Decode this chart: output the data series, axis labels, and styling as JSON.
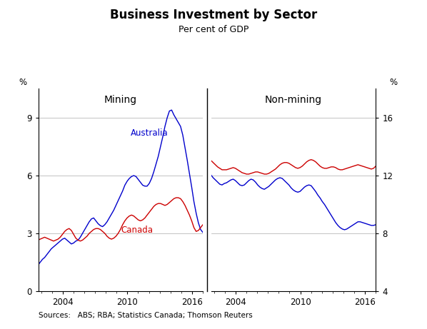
{
  "title": "Business Investment by Sector",
  "subtitle": "Per cent of GDP",
  "panel_left_label": "Mining",
  "panel_right_label": "Non-mining",
  "label_australia": "Australia",
  "label_canada": "Canada",
  "left_ylabel": "%",
  "right_ylabel": "%",
  "left_ylim": [
    0,
    10.5
  ],
  "right_ylim": [
    4,
    18
  ],
  "left_yticks": [
    0,
    3,
    6,
    9
  ],
  "right_yticks": [
    4,
    8,
    12,
    16
  ],
  "source_text": "Sources:   ABS; RBA; Statistics Canada; Thomson Reuters",
  "australia_color": "#0000CC",
  "canada_color": "#CC0000",
  "grid_color": "#AAAAAA",
  "mining_australia": [
    1.2,
    1.35,
    1.5,
    1.65,
    1.75,
    1.9,
    2.05,
    2.2,
    2.3,
    2.4,
    2.5,
    2.6,
    2.7,
    2.75,
    2.65,
    2.55,
    2.45,
    2.5,
    2.6,
    2.65,
    2.8,
    3.0,
    3.2,
    3.4,
    3.6,
    3.75,
    3.8,
    3.65,
    3.5,
    3.4,
    3.35,
    3.45,
    3.6,
    3.8,
    4.0,
    4.2,
    4.45,
    4.7,
    4.95,
    5.2,
    5.5,
    5.7,
    5.85,
    5.95,
    6.0,
    5.95,
    5.8,
    5.65,
    5.5,
    5.45,
    5.45,
    5.6,
    5.85,
    6.2,
    6.6,
    7.0,
    7.5,
    8.0,
    8.55,
    9.0,
    9.35,
    9.4,
    9.15,
    8.95,
    8.75,
    8.55,
    8.1,
    7.45,
    6.8,
    6.1,
    5.4,
    4.65,
    4.05,
    3.55,
    3.2,
    3.05
  ],
  "mining_canada": [
    2.6,
    2.65,
    2.7,
    2.75,
    2.8,
    2.75,
    2.7,
    2.65,
    2.6,
    2.65,
    2.7,
    2.8,
    2.95,
    3.1,
    3.2,
    3.25,
    3.15,
    2.95,
    2.75,
    2.65,
    2.6,
    2.65,
    2.75,
    2.85,
    3.0,
    3.1,
    3.2,
    3.25,
    3.25,
    3.2,
    3.1,
    3.0,
    2.85,
    2.75,
    2.7,
    2.75,
    2.85,
    3.0,
    3.2,
    3.45,
    3.65,
    3.8,
    3.9,
    3.95,
    3.9,
    3.8,
    3.7,
    3.65,
    3.7,
    3.8,
    3.95,
    4.1,
    4.25,
    4.4,
    4.5,
    4.55,
    4.55,
    4.5,
    4.45,
    4.5,
    4.6,
    4.7,
    4.8,
    4.85,
    4.85,
    4.8,
    4.65,
    4.45,
    4.2,
    3.95,
    3.65,
    3.3,
    3.1,
    3.15,
    3.3,
    3.45
  ],
  "nonmining_australia": [
    12.2,
    12.05,
    11.85,
    11.7,
    11.55,
    11.4,
    11.35,
    11.45,
    11.5,
    11.6,
    11.7,
    11.75,
    11.65,
    11.5,
    11.35,
    11.3,
    11.35,
    11.5,
    11.65,
    11.75,
    11.7,
    11.55,
    11.35,
    11.2,
    11.1,
    11.05,
    11.15,
    11.25,
    11.4,
    11.55,
    11.7,
    11.8,
    11.85,
    11.8,
    11.65,
    11.5,
    11.35,
    11.15,
    11.0,
    10.9,
    10.85,
    10.9,
    11.05,
    11.2,
    11.3,
    11.35,
    11.3,
    11.1,
    10.9,
    10.65,
    10.45,
    10.2,
    10.0,
    9.75,
    9.5,
    9.25,
    9.0,
    8.75,
    8.55,
    8.4,
    8.3,
    8.25,
    8.3,
    8.4,
    8.5,
    8.6,
    8.7,
    8.8,
    8.8,
    8.75,
    8.7,
    8.65,
    8.6,
    8.55,
    8.55,
    8.6
  ],
  "nonmining_canada": [
    13.2,
    13.05,
    12.9,
    12.75,
    12.6,
    12.5,
    12.4,
    12.4,
    12.4,
    12.45,
    12.5,
    12.55,
    12.5,
    12.4,
    12.3,
    12.2,
    12.15,
    12.1,
    12.1,
    12.15,
    12.2,
    12.25,
    12.25,
    12.2,
    12.15,
    12.1,
    12.1,
    12.15,
    12.25,
    12.35,
    12.45,
    12.6,
    12.75,
    12.85,
    12.9,
    12.9,
    12.85,
    12.75,
    12.65,
    12.55,
    12.5,
    12.55,
    12.65,
    12.8,
    12.95,
    13.05,
    13.1,
    13.05,
    12.95,
    12.8,
    12.65,
    12.55,
    12.5,
    12.5,
    12.55,
    12.6,
    12.6,
    12.55,
    12.45,
    12.4,
    12.4,
    12.45,
    12.5,
    12.55,
    12.6,
    12.65,
    12.7,
    12.75,
    12.7,
    12.65,
    12.6,
    12.55,
    12.5,
    12.45,
    12.5,
    12.65
  ],
  "x_start_year": 2001.5,
  "x_end_year": 2017.0,
  "n_points": 76
}
